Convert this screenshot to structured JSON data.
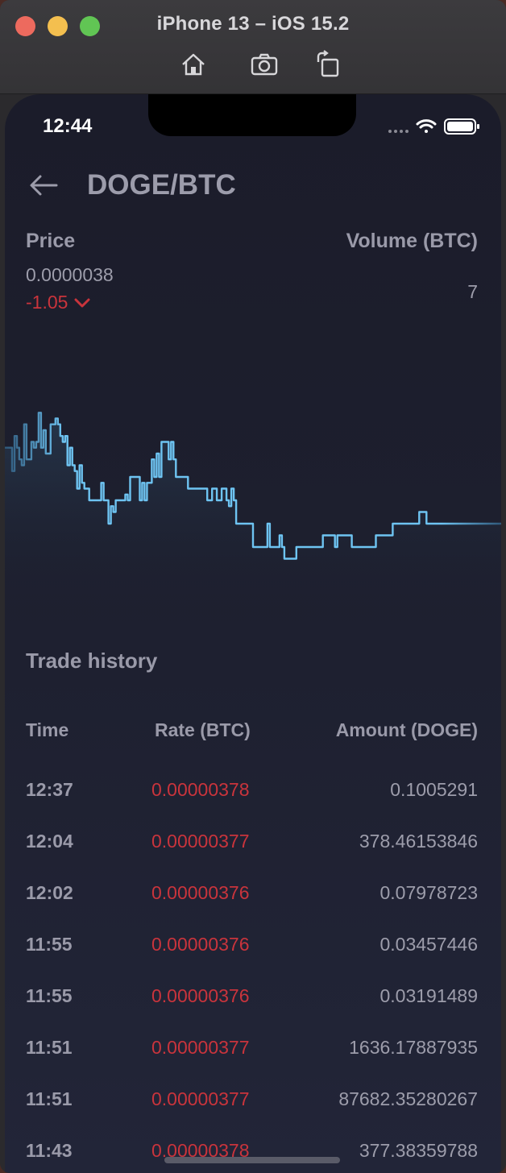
{
  "window": {
    "title": "iPhone 13 – iOS 15.2",
    "toolbar_icons": [
      "home-icon",
      "camera-icon",
      "rotate-icon"
    ]
  },
  "status_bar": {
    "time": "12:44",
    "icons": [
      "signal-icon",
      "wifi-icon",
      "battery-icon"
    ]
  },
  "header": {
    "back_icon": "arrow-left-icon",
    "pair": "DOGE/BTC"
  },
  "summary": {
    "price_label": "Price",
    "price_value": "0.0000038",
    "change_value": "-1.05",
    "volume_label": "Volume (BTC)",
    "volume_value": "7"
  },
  "colors": {
    "line": "#6ec4f2",
    "negative": "#c9343c",
    "label": "#9a9aa9"
  },
  "chart_data": {
    "type": "line",
    "grid": false,
    "values": [
      0.03785,
      0.03785,
      0.03785,
      0.03781,
      0.03787,
      0.03785,
      0.03783,
      0.03782,
      0.03789,
      0.03783,
      0.03783,
      0.03786,
      0.03785,
      0.03786,
      0.03791,
      0.03785,
      0.03788,
      0.03784,
      0.03784,
      0.03789,
      0.03789,
      0.0379,
      0.03789,
      0.03787,
      0.03786,
      0.03787,
      0.03782,
      0.03785,
      0.03782,
      0.03781,
      0.03778,
      0.03782,
      0.03779,
      0.03778,
      0.03778,
      0.03776,
      0.03776,
      0.03776,
      0.03776,
      0.03776,
      0.03779,
      0.03776,
      0.03776,
      0.03772,
      0.03775,
      0.03774,
      0.03776,
      0.03776,
      0.03776,
      0.03776,
      0.03777,
      0.03776,
      0.0378,
      0.0378,
      0.0378,
      0.0378,
      0.03776,
      0.03779,
      0.03776,
      0.03779,
      0.03779,
      0.03783,
      0.0378,
      0.03784,
      0.0378,
      0.03786,
      0.03786,
      0.03786,
      0.03783,
      0.03786,
      0.03783,
      0.0378,
      0.0378,
      0.0378,
      0.0378,
      0.0378,
      0.03778,
      0.03778,
      0.03778,
      0.03778,
      0.03778,
      0.03778,
      0.03778,
      0.03778,
      0.03776,
      0.03776,
      0.03778,
      0.03778,
      0.03776,
      0.03776,
      0.03778,
      0.03778,
      0.03776,
      0.03775,
      0.03778,
      0.03776,
      0.03772,
      0.03772,
      0.03772,
      0.03772,
      0.03772,
      0.03772,
      0.03772,
      0.03768,
      0.03768,
      0.03768,
      0.03768,
      0.03768,
      0.03768,
      0.03772,
      0.03768,
      0.03768,
      0.03768,
      0.03768,
      0.0377,
      0.03768,
      0.03766,
      0.03766,
      0.03766,
      0.03766,
      0.03766,
      0.03768,
      0.03768,
      0.03768,
      0.03768,
      0.03768,
      0.03768,
      0.03768,
      0.03768,
      0.03768,
      0.03768,
      0.03768,
      0.0377,
      0.0377,
      0.0377,
      0.0377,
      0.0377,
      0.03768,
      0.0377,
      0.0377,
      0.0377,
      0.0377,
      0.0377,
      0.0377,
      0.03768,
      0.03768,
      0.03768,
      0.03768,
      0.03768,
      0.03768,
      0.03768,
      0.03768,
      0.03768,
      0.03768,
      0.0377,
      0.0377,
      0.0377,
      0.0377,
      0.0377,
      0.0377,
      0.0377,
      0.03772,
      0.03772,
      0.03772,
      0.03772,
      0.03772,
      0.03772,
      0.03772,
      0.03772,
      0.03772,
      0.03772,
      0.03772,
      0.03774,
      0.03774,
      0.03774,
      0.03772,
      0.03772,
      0.03772,
      0.03772,
      0.03772,
      0.03772,
      0.03772,
      0.03772,
      0.03772,
      0.03772,
      0.03772,
      0.03772,
      0.03772,
      0.03772,
      0.03772,
      0.03772,
      0.03772,
      0.03772,
      0.03772,
      0.03772,
      0.03772,
      0.03772,
      0.03772,
      0.03772,
      0.03772,
      0.03772,
      0.03772,
      0.03772,
      0.03772,
      0.03772,
      0.03772,
      0.03772
    ],
    "ylim": [
      0.0376,
      0.038
    ]
  },
  "trade_history": {
    "title": "Trade history",
    "columns": {
      "time": "Time",
      "rate": "Rate (BTC)",
      "amount": "Amount (DOGE)"
    },
    "rows": [
      {
        "time": "12:37",
        "rate": "0.00000378",
        "amount": "0.1005291"
      },
      {
        "time": "12:04",
        "rate": "0.00000377",
        "amount": "378.46153846"
      },
      {
        "time": "12:02",
        "rate": "0.00000376",
        "amount": "0.07978723"
      },
      {
        "time": "11:55",
        "rate": "0.00000376",
        "amount": "0.03457446"
      },
      {
        "time": "11:55",
        "rate": "0.00000376",
        "amount": "0.03191489"
      },
      {
        "time": "11:51",
        "rate": "0.00000377",
        "amount": "1636.17887935"
      },
      {
        "time": "11:51",
        "rate": "0.00000377",
        "amount": "87682.35280267"
      },
      {
        "time": "11:43",
        "rate": "0.00000378",
        "amount": "377.38359788"
      }
    ]
  }
}
